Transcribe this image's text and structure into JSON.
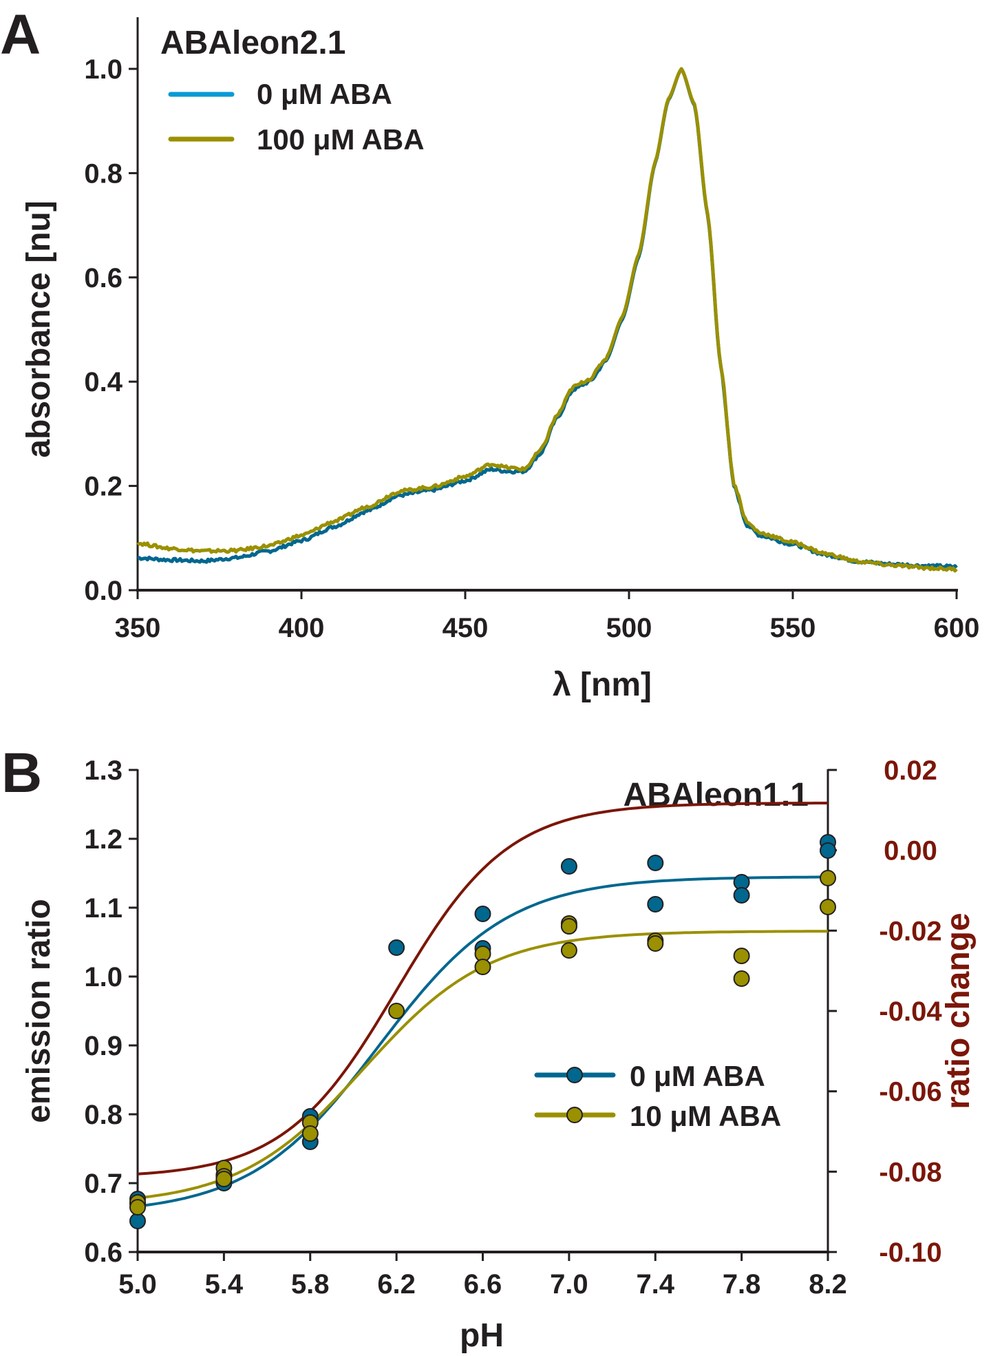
{
  "chart_data": [
    {
      "panel": "A",
      "type": "line",
      "title": "ABAleon2.1",
      "xlabel": "λ [nm]",
      "ylabel": "absorbance [nu]",
      "xlim": [
        350,
        600
      ],
      "ylim": [
        0,
        1.0
      ],
      "xticks": [
        "350",
        "400",
        "450",
        "500",
        "550",
        "600"
      ],
      "yticks": [
        "0.0",
        "0.2",
        "0.4",
        "0.6",
        "0.8",
        "1.0"
      ],
      "legend_position": "top-left",
      "grid": false,
      "series": [
        {
          "name": "0 μM ABA",
          "color": "#00678f",
          "legend_color": "#0a9ad6",
          "x": [
            350,
            360,
            370,
            380,
            390,
            400,
            410,
            420,
            430,
            440,
            450,
            458,
            463,
            468,
            473,
            478,
            483,
            488,
            493,
            498,
            503,
            508,
            512,
            516,
            520,
            524,
            528,
            532,
            536,
            540,
            550,
            560,
            570,
            580,
            590,
            600
          ],
          "y": [
            0.062,
            0.058,
            0.056,
            0.062,
            0.075,
            0.095,
            0.122,
            0.152,
            0.182,
            0.192,
            0.21,
            0.232,
            0.228,
            0.228,
            0.262,
            0.33,
            0.385,
            0.4,
            0.44,
            0.52,
            0.64,
            0.82,
            0.94,
            1.0,
            0.93,
            0.72,
            0.43,
            0.2,
            0.125,
            0.105,
            0.088,
            0.068,
            0.055,
            0.05,
            0.047,
            0.045
          ]
        },
        {
          "name": "100 μM ABA",
          "color": "#9a9000",
          "legend_color": "#9a9000",
          "x": [
            350,
            360,
            370,
            380,
            390,
            400,
            410,
            420,
            430,
            440,
            450,
            458,
            463,
            468,
            473,
            478,
            483,
            488,
            493,
            498,
            503,
            508,
            512,
            516,
            520,
            524,
            528,
            532,
            536,
            540,
            550,
            560,
            570,
            580,
            590,
            600
          ],
          "y": [
            0.09,
            0.08,
            0.075,
            0.076,
            0.085,
            0.105,
            0.132,
            0.16,
            0.19,
            0.198,
            0.218,
            0.242,
            0.235,
            0.232,
            0.268,
            0.335,
            0.39,
            0.405,
            0.445,
            0.525,
            0.645,
            0.822,
            0.942,
            1.0,
            0.932,
            0.722,
            0.432,
            0.205,
            0.13,
            0.11,
            0.092,
            0.07,
            0.055,
            0.048,
            0.043,
            0.04
          ]
        }
      ]
    },
    {
      "panel": "B",
      "type": "scatter",
      "title": "ABAleon1.1",
      "xlabel": "pH",
      "ylabel": "emission ratio",
      "y2label": "ratio change",
      "xlim": [
        5.0,
        8.2
      ],
      "ylim": [
        0.6,
        1.3
      ],
      "y2lim": [
        -0.1,
        0.02
      ],
      "xticks": [
        "5.0",
        "5.4",
        "5.8",
        "6.2",
        "6.6",
        "7.0",
        "7.4",
        "7.8",
        "8.2"
      ],
      "yticks": [
        "0.6",
        "0.7",
        "0.8",
        "0.9",
        "1.0",
        "1.1",
        "1.2",
        "1.3"
      ],
      "y2ticks": [
        "-0.10",
        "-0.08",
        "-0.06",
        "-0.04",
        "-0.02",
        "0.00",
        "0.02"
      ],
      "legend_position": "center-right",
      "grid": false,
      "series": [
        {
          "name": "0 μM ABA",
          "color": "#00678f",
          "points": [
            [
              5.0,
              0.677
            ],
            [
              5.0,
              0.645
            ],
            [
              5.0,
              0.67
            ],
            [
              5.4,
              0.7
            ],
            [
              5.4,
              0.712
            ],
            [
              5.8,
              0.797
            ],
            [
              5.8,
              0.76
            ],
            [
              6.2,
              1.042
            ],
            [
              6.6,
              1.091
            ],
            [
              6.6,
              1.041
            ],
            [
              7.0,
              1.16
            ],
            [
              7.0,
              1.073
            ],
            [
              7.4,
              1.165
            ],
            [
              7.4,
              1.105
            ],
            [
              7.8,
              1.137
            ],
            [
              7.8,
              1.118
            ],
            [
              8.2,
              1.195
            ],
            [
              8.2,
              1.183
            ]
          ],
          "fit": {
            "bottom": 0.655,
            "top": 1.145,
            "midpoint": 6.12,
            "slope": 0.3
          }
        },
        {
          "name": "10 μM ABA",
          "color": "#9a9000",
          "points": [
            [
              5.0,
              0.672
            ],
            [
              5.0,
              0.665
            ],
            [
              5.4,
              0.722
            ],
            [
              5.4,
              0.71
            ],
            [
              5.4,
              0.706
            ],
            [
              5.8,
              0.788
            ],
            [
              5.8,
              0.772
            ],
            [
              6.2,
              0.95
            ],
            [
              6.6,
              1.033
            ],
            [
              6.6,
              1.014
            ],
            [
              7.0,
              1.077
            ],
            [
              7.0,
              1.073
            ],
            [
              7.0,
              1.038
            ],
            [
              7.4,
              1.052
            ],
            [
              7.4,
              1.048
            ],
            [
              7.8,
              1.03
            ],
            [
              7.8,
              0.997
            ],
            [
              8.2,
              1.143
            ],
            [
              8.2,
              1.101
            ]
          ],
          "fit": {
            "bottom": 0.668,
            "top": 1.066,
            "midpoint": 6.05,
            "slope": 0.29
          }
        },
        {
          "name": "ratio change",
          "axis": "right",
          "type": "line",
          "color": "#7b1608",
          "fit": {
            "bottom": -0.0815,
            "top": 0.0118,
            "midpoint": 6.2,
            "slope": 0.26
          }
        }
      ]
    }
  ],
  "labels": {
    "panel_a": "A",
    "panel_b": "B"
  }
}
